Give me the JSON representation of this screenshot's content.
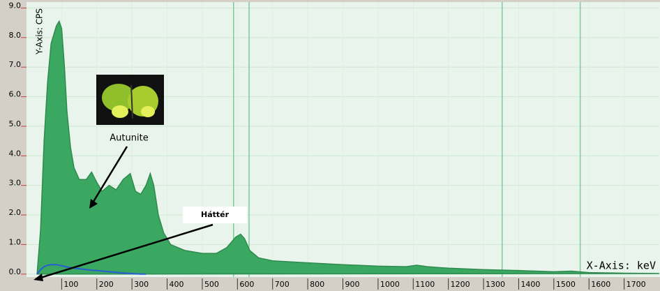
{
  "chart_data": {
    "type": "area",
    "x_label": "X-Axis: keV",
    "y_label": "Y-Axis: CPS",
    "x": [
      30,
      40,
      45,
      50,
      60,
      70,
      85,
      93,
      100,
      108,
      115,
      125,
      135,
      150,
      170,
      185,
      200,
      215,
      235,
      255,
      275,
      295,
      310,
      325,
      340,
      352,
      362,
      375,
      390,
      410,
      450,
      500,
      540,
      570,
      595,
      609,
      620,
      635,
      660,
      700,
      800,
      900,
      1000,
      1080,
      1110,
      1140,
      1200,
      1300,
      1400,
      1500,
      1550,
      1600,
      1700,
      1800
    ],
    "series": [
      {
        "name": "Autunite",
        "color": "#3aa860",
        "values": [
          0,
          1.5,
          3.0,
          4.5,
          6.5,
          7.8,
          8.4,
          8.55,
          8.3,
          7.0,
          5.5,
          4.3,
          3.6,
          3.2,
          3.2,
          3.45,
          3.1,
          2.8,
          3.0,
          2.85,
          3.2,
          3.4,
          2.8,
          2.7,
          3.0,
          3.4,
          3.0,
          2.0,
          1.4,
          1.0,
          0.8,
          0.7,
          0.7,
          0.9,
          1.25,
          1.35,
          1.2,
          0.8,
          0.55,
          0.45,
          0.38,
          0.32,
          0.27,
          0.25,
          0.3,
          0.25,
          0.2,
          0.15,
          0.12,
          0.08,
          0.1,
          0.05,
          0.03,
          0.02
        ]
      },
      {
        "name": "Háttér",
        "color": "#2a5cd6",
        "values": [
          0,
          0.15,
          0.2,
          0.25,
          0.3,
          0.32,
          0.32,
          0.3,
          0.28,
          0.26,
          0.24,
          0.22,
          0.2,
          0.18,
          0.15,
          0.13,
          0.12,
          0.1,
          0.08,
          0.06,
          0.04,
          0.02,
          0.01,
          0,
          0,
          null,
          null,
          null,
          null,
          null,
          null,
          null,
          null,
          null,
          null,
          null,
          null,
          null,
          null,
          null,
          null,
          null,
          null,
          null,
          null,
          null,
          null,
          null,
          null,
          null,
          null,
          null,
          null,
          null
        ]
      }
    ],
    "marker_lines": [
      589,
      633,
      1353,
      1575
    ],
    "xlim": [
      0,
      1800
    ],
    "ylim": [
      -0.1,
      9.2
    ],
    "xticks": [
      100,
      200,
      300,
      400,
      500,
      600,
      700,
      800,
      900,
      1000,
      1100,
      1200,
      1300,
      1400,
      1500,
      1600,
      1700
    ],
    "yticks": [
      {
        "value": 0,
        "label": "0.0"
      },
      {
        "value": 1,
        "label": "1.0"
      },
      {
        "value": 2,
        "label": "2.0"
      },
      {
        "value": 3,
        "label": "3.0"
      },
      {
        "value": 4,
        "label": "4.0"
      },
      {
        "value": 5,
        "label": "5.0"
      },
      {
        "value": 6,
        "label": "6.0"
      },
      {
        "value": 7,
        "label": "7.0"
      },
      {
        "value": 8,
        "label": "8.0"
      },
      {
        "value": 9,
        "label": "9.0"
      }
    ],
    "grid": true
  }
}
